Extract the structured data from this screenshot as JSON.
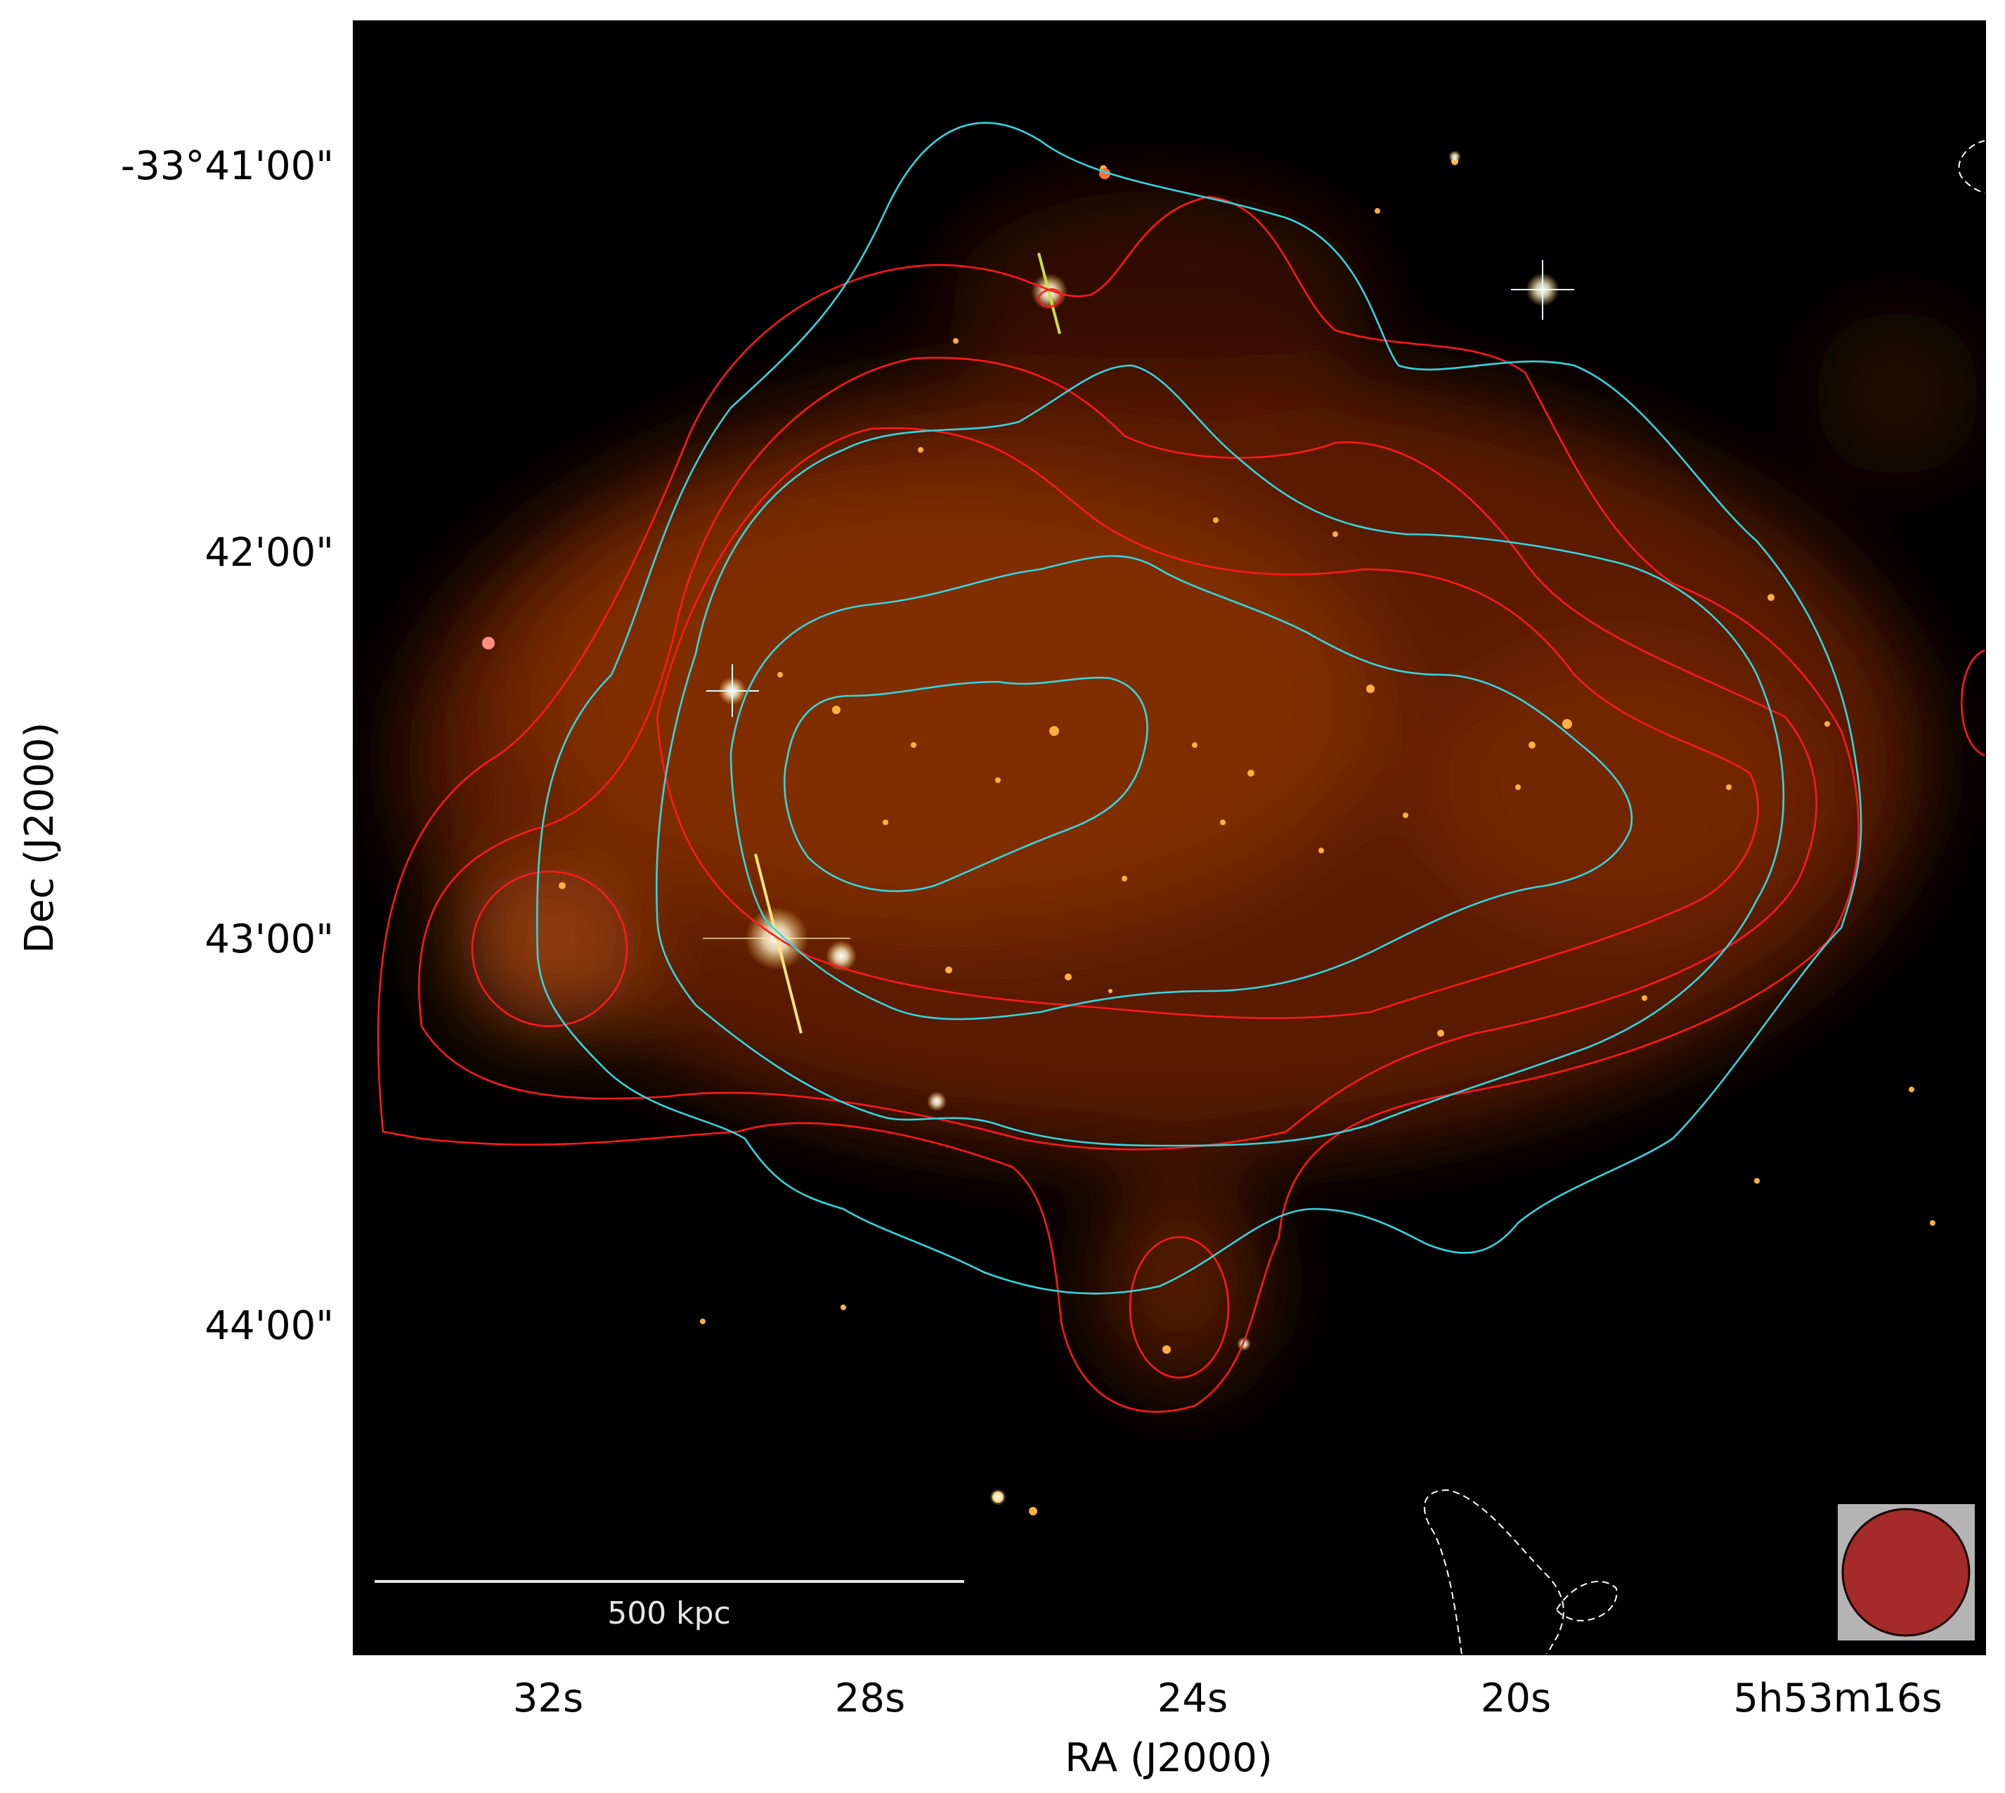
{
  "figure": {
    "dec_axis": {
      "label": "Dec (J2000)",
      "ticks": [
        "-33°41'00\"",
        "42'00\"",
        "43'00\"",
        "44'00\""
      ]
    },
    "ra_axis": {
      "label": "RA (J2000)",
      "ticks": [
        "32s",
        "28s",
        "24s",
        "20s",
        "5h53m16s"
      ]
    },
    "scale_bar": {
      "label": "500 kpc"
    },
    "contour_colors": {
      "xray": "#ff1a1a",
      "radio": "#33d6e0",
      "negative": "#ffffff"
    },
    "background_color": "#000000",
    "emission_color": "#8a3000",
    "beam_color": "#a52a2a"
  }
}
